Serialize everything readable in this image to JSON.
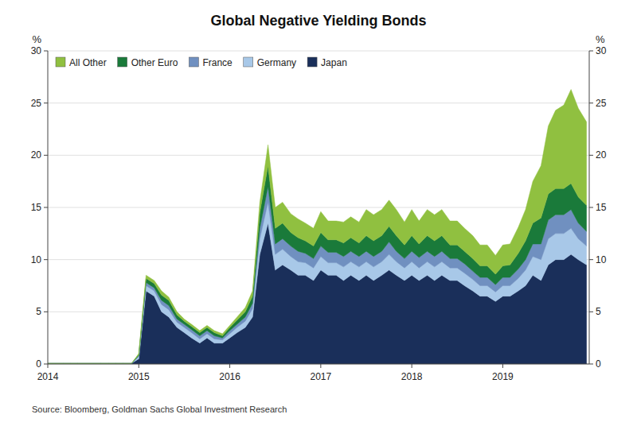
{
  "chart_data": {
    "type": "area",
    "stacked": true,
    "title": "Global Negative Yielding Bonds",
    "ylabel": "%",
    "y2label": "%",
    "annotations": [
      "Source: Bloomberg, Goldman Sachs Global Investment Research"
    ],
    "grid": true,
    "legend": "upper left",
    "xlim": [
      2014.0,
      2019.95
    ],
    "xticks": [
      2014,
      2015,
      2016,
      2017,
      2018,
      2019
    ],
    "ylim": [
      0,
      30
    ],
    "yticks": [
      0,
      5,
      10,
      15,
      20,
      25,
      30
    ],
    "y2lim": [
      0,
      30
    ],
    "y2ticks": [
      0,
      5,
      10,
      15,
      20,
      25,
      30
    ],
    "x": [
      2014.0,
      2014.08,
      2014.17,
      2014.25,
      2014.33,
      2014.42,
      2014.5,
      2014.58,
      2014.67,
      2014.75,
      2014.83,
      2014.92,
      2015.0,
      2015.08,
      2015.17,
      2015.25,
      2015.33,
      2015.42,
      2015.5,
      2015.58,
      2015.67,
      2015.75,
      2015.83,
      2015.92,
      2016.0,
      2016.08,
      2016.17,
      2016.25,
      2016.33,
      2016.42,
      2016.5,
      2016.58,
      2016.67,
      2016.75,
      2016.83,
      2016.92,
      2017.0,
      2017.08,
      2017.17,
      2017.25,
      2017.33,
      2017.42,
      2017.5,
      2017.58,
      2017.67,
      2017.75,
      2017.83,
      2017.92,
      2018.0,
      2018.08,
      2018.17,
      2018.25,
      2018.33,
      2018.42,
      2018.5,
      2018.58,
      2018.67,
      2018.75,
      2018.83,
      2018.92,
      2019.0,
      2019.08,
      2019.17,
      2019.25,
      2019.33,
      2019.42,
      2019.5,
      2019.58,
      2019.67,
      2019.75,
      2019.83,
      2019.92
    ],
    "series": [
      {
        "name": "Japan",
        "color": "#1a2f5a",
        "values": [
          0.05,
          0.05,
          0.05,
          0.05,
          0.05,
          0.05,
          0.05,
          0.05,
          0.05,
          0.05,
          0.05,
          0.05,
          0.5,
          7.0,
          6.5,
          5.0,
          4.5,
          3.5,
          3.0,
          2.5,
          2.0,
          2.5,
          2.0,
          2.0,
          2.5,
          3.0,
          3.5,
          4.5,
          10.5,
          13.5,
          9.0,
          9.5,
          9.0,
          8.5,
          8.5,
          8.0,
          9.0,
          8.5,
          8.5,
          8.0,
          8.5,
          8.0,
          8.5,
          8.0,
          8.5,
          9.0,
          8.5,
          8.0,
          8.5,
          8.0,
          8.5,
          8.0,
          8.5,
          8.0,
          8.0,
          7.5,
          7.0,
          6.5,
          6.5,
          6.0,
          6.5,
          6.5,
          7.0,
          7.5,
          8.5,
          8.0,
          9.5,
          10.0,
          10.0,
          10.5,
          10.0,
          9.5
        ]
      },
      {
        "name": "Germany",
        "color": "#a8c8e8",
        "values": [
          0.0,
          0.0,
          0.0,
          0.0,
          0.0,
          0.0,
          0.0,
          0.0,
          0.0,
          0.0,
          0.0,
          0.0,
          0.2,
          0.5,
          0.5,
          0.7,
          0.7,
          0.5,
          0.5,
          0.5,
          0.4,
          0.4,
          0.4,
          0.3,
          0.4,
          0.5,
          0.6,
          0.8,
          1.5,
          2.0,
          1.5,
          1.5,
          1.3,
          1.3,
          1.2,
          1.2,
          1.3,
          1.2,
          1.2,
          1.3,
          1.3,
          1.3,
          1.3,
          1.3,
          1.3,
          1.5,
          1.3,
          1.2,
          1.3,
          1.2,
          1.3,
          1.3,
          1.3,
          1.2,
          1.2,
          1.2,
          1.1,
          1.0,
          1.0,
          0.9,
          1.0,
          1.0,
          1.2,
          1.5,
          1.8,
          2.0,
          2.5,
          2.5,
          2.5,
          2.5,
          2.0,
          1.8
        ]
      },
      {
        "name": "France",
        "color": "#7090c0",
        "values": [
          0.0,
          0.0,
          0.0,
          0.0,
          0.0,
          0.0,
          0.0,
          0.0,
          0.0,
          0.0,
          0.0,
          0.0,
          0.1,
          0.3,
          0.3,
          0.4,
          0.4,
          0.3,
          0.3,
          0.3,
          0.3,
          0.3,
          0.3,
          0.2,
          0.3,
          0.3,
          0.4,
          0.5,
          1.0,
          1.5,
          1.0,
          1.0,
          1.0,
          1.0,
          0.9,
          0.9,
          1.0,
          1.0,
          1.0,
          1.0,
          1.0,
          1.0,
          1.0,
          1.0,
          1.0,
          1.2,
          1.0,
          0.9,
          1.0,
          1.0,
          1.0,
          1.0,
          1.0,
          0.9,
          0.9,
          0.9,
          0.8,
          0.8,
          0.8,
          0.7,
          0.8,
          0.8,
          0.9,
          1.0,
          1.2,
          1.5,
          1.8,
          1.8,
          1.8,
          1.8,
          1.5,
          1.4
        ]
      },
      {
        "name": "Other Euro",
        "color": "#1a7a3a",
        "values": [
          0.0,
          0.0,
          0.0,
          0.0,
          0.0,
          0.0,
          0.0,
          0.0,
          0.0,
          0.0,
          0.0,
          0.0,
          0.1,
          0.4,
          0.4,
          0.5,
          0.5,
          0.4,
          0.3,
          0.3,
          0.3,
          0.3,
          0.3,
          0.2,
          0.3,
          0.4,
          0.5,
          0.7,
          1.5,
          2.0,
          1.5,
          1.5,
          1.3,
          1.3,
          1.2,
          1.2,
          1.3,
          1.2,
          1.2,
          1.3,
          1.3,
          1.3,
          1.5,
          1.5,
          1.5,
          1.5,
          1.5,
          1.3,
          1.5,
          1.3,
          1.5,
          1.5,
          1.5,
          1.3,
          1.3,
          1.2,
          1.2,
          1.1,
          1.1,
          1.0,
          1.1,
          1.2,
          1.5,
          1.8,
          2.0,
          2.5,
          2.5,
          2.5,
          2.5,
          2.5,
          2.5,
          2.5
        ]
      },
      {
        "name": "All Other",
        "color": "#90c040",
        "values": [
          0.0,
          0.0,
          0.0,
          0.0,
          0.0,
          0.0,
          0.0,
          0.0,
          0.0,
          0.0,
          0.0,
          0.0,
          0.1,
          0.3,
          0.3,
          0.4,
          0.3,
          0.3,
          0.2,
          0.2,
          0.2,
          0.2,
          0.2,
          0.2,
          0.2,
          0.3,
          0.4,
          0.5,
          1.0,
          2.0,
          2.0,
          2.0,
          1.8,
          1.8,
          1.7,
          1.7,
          2.0,
          1.8,
          1.8,
          2.0,
          2.0,
          2.0,
          2.5,
          2.5,
          2.5,
          2.5,
          2.5,
          2.2,
          2.5,
          2.2,
          2.5,
          2.5,
          2.5,
          2.3,
          2.3,
          2.2,
          2.2,
          2.0,
          2.0,
          1.8,
          2.0,
          2.0,
          2.5,
          3.0,
          4.0,
          5.0,
          6.5,
          7.5,
          8.0,
          9.0,
          8.5,
          8.0
        ]
      }
    ]
  }
}
